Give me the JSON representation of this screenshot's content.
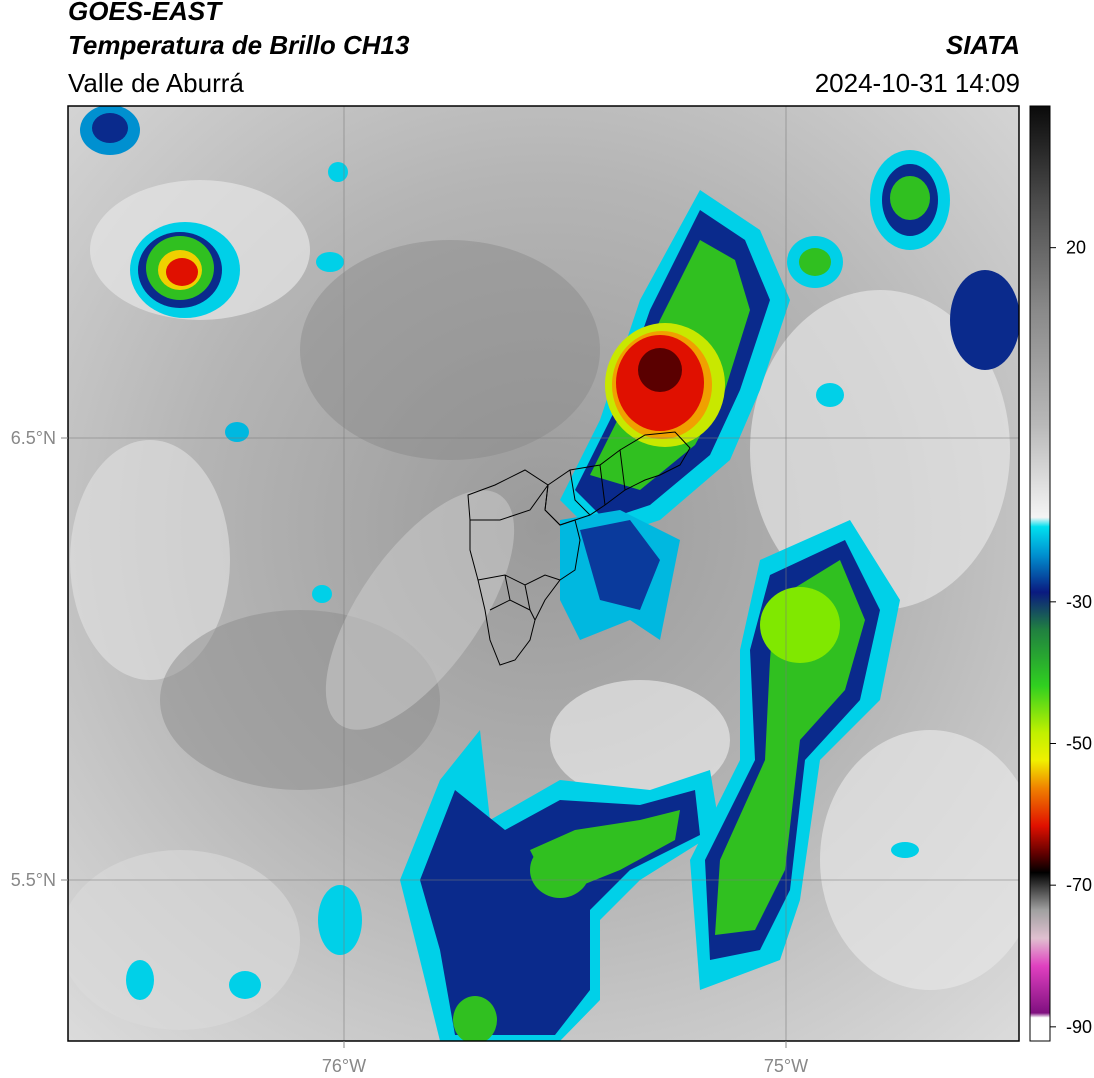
{
  "header": {
    "satellite": "GOES-EAST",
    "product": "Temperatura de Brillo CH13",
    "region": "Valle de Aburrá",
    "agency": "SIATA",
    "timestamp": "2024-10-31 14:09"
  },
  "axes": {
    "lat_ticks": [
      "6.5°N",
      "5.5°N"
    ],
    "lon_ticks": [
      "76°W",
      "75°W"
    ]
  },
  "colorbar": {
    "ticks": [
      "20",
      "-30",
      "-50",
      "-70",
      "-90"
    ],
    "tick_values": [
      20,
      -30,
      -50,
      -70,
      -90
    ],
    "range": [
      -92,
      40
    ]
  },
  "colors": {
    "background_gray_light": "#ececec",
    "background_gray_dark": "#8a8a8a",
    "deep_blue": "#0a2a8c",
    "cyan": "#00d8f0",
    "green": "#30c020",
    "yellow": "#f0f000",
    "red": "#e01000",
    "dark_red": "#5a0000"
  }
}
